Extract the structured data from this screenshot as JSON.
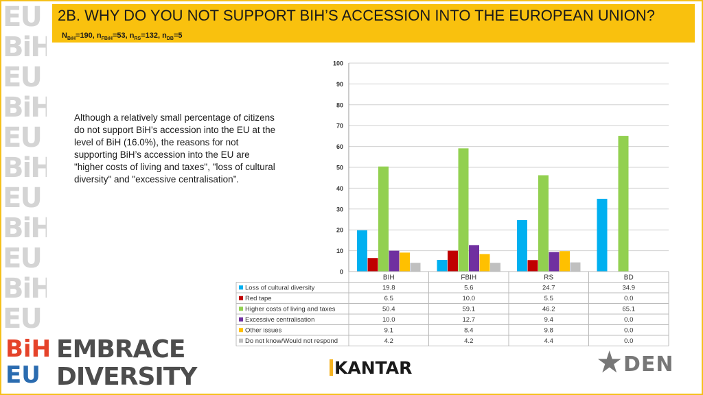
{
  "header": {
    "title": "2B. WHY DO YOU NOT SUPPORT BIH’S ACCESSION INTO THE EUROPEAN UNION?",
    "sample": {
      "n_bih_label": "N",
      "n_bih_sub": "BiH",
      "n_bih_value": "=190, ",
      "n_fbih_label": "n",
      "n_fbih_sub": "FBiH",
      "n_fbih_value": "=53, ",
      "n_rs_label": "n",
      "n_rs_sub": "RS",
      "n_rs_value": "=132, ",
      "n_db_label": "n",
      "n_db_sub": "DB",
      "n_db_value": "=5"
    }
  },
  "body_text": "Although a relatively small percentage of citizens do not support BiH’s accession into the EU at the level of BiH (16.0%), the reasons for not supporting BiH’s accession into the EU are \"higher costs of living and taxes\", \"loss of cultural diversity\" and \"excessive centralisation”.",
  "sidebar": {
    "letters": [
      "EU",
      "BiH",
      "EU",
      "BiH",
      "EU",
      "BiH",
      "EU",
      "BiH",
      "EU",
      "BiH",
      "EU"
    ]
  },
  "logos": {
    "embrace_mark_top": "BiH",
    "embrace_mark_bottom": "EU",
    "embrace_line1": "EMBRACE",
    "embrace_line2": "DIVERSITY",
    "kantar": "ANTAR",
    "kantar_first": "K",
    "den": "DEN"
  },
  "chart_data": {
    "type": "bar",
    "categories": [
      "BIH",
      "FBIH",
      "RS",
      "BD"
    ],
    "ylim": [
      0,
      100
    ],
    "yticks": [
      0,
      10,
      20,
      30,
      40,
      50,
      60,
      70,
      80,
      90,
      100
    ],
    "series": [
      {
        "name": "Loss of cultural diversity",
        "color": "#00b0f0",
        "values": [
          19.8,
          5.6,
          24.7,
          34.9
        ],
        "labels": [
          "19.8",
          "5.6",
          "24.7",
          "34.9"
        ]
      },
      {
        "name": "Red tape",
        "color": "#c00000",
        "values": [
          6.5,
          10.0,
          5.5,
          0.0
        ],
        "labels": [
          "6.5",
          "10.0",
          "5.5",
          "0.0"
        ]
      },
      {
        "name": "Higher costs of living and taxes",
        "color": "#92d050",
        "values": [
          50.4,
          59.1,
          46.2,
          65.1
        ],
        "labels": [
          "50.4",
          "59.1",
          "46.2",
          "65.1"
        ]
      },
      {
        "name": "Excessive centralisation",
        "color": "#7030a0",
        "values": [
          10.0,
          12.7,
          9.4,
          0.0
        ],
        "labels": [
          "10.0",
          "12.7",
          "9.4",
          "0.0"
        ]
      },
      {
        "name": "Other issues",
        "color": "#ffc000",
        "values": [
          9.1,
          8.4,
          9.8,
          0.0
        ],
        "labels": [
          "9.1",
          "8.4",
          "9.8",
          "0.0"
        ]
      },
      {
        "name": "Do not know/Would not respond",
        "color": "#c0c0c0",
        "values": [
          4.2,
          4.2,
          4.4,
          0.0
        ],
        "labels": [
          "4.2",
          "4.2",
          "4.4",
          "0.0"
        ]
      }
    ]
  }
}
